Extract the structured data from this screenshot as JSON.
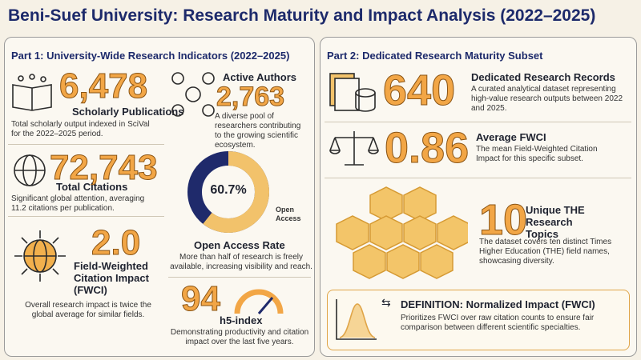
{
  "header": {
    "title": "Beni-Suef University: Research Maturity and Impact Analysis (2022–2025)"
  },
  "part1": {
    "heading": "Part 1: University-Wide Research Indicators (2022–2025)",
    "publications": {
      "number": "6,478",
      "label": "Scholarly Publications",
      "desc": "Total scholarly output indexed in SciVal for the 2022–2025 period."
    },
    "authors": {
      "label": "Active Authors",
      "number": "2,763",
      "desc": "A diverse pool of researchers contributing to the growing scientific ecosystem."
    },
    "citations": {
      "number": "72,743",
      "label": "Total Citations",
      "desc": "Significant global attention, averaging 11.2 citations per publication."
    },
    "fwci": {
      "number": "2.0",
      "label": "Field-Weighted Citation Impact (FWCI)",
      "desc": "Overall research impact is twice the global average for similar fields."
    },
    "open_access": {
      "value": 60.7,
      "value_label": "60.7%",
      "legend": "Open Access",
      "label": "Open Access Rate",
      "desc": "More than half of research is freely available, increasing visibility and reach."
    },
    "h5": {
      "number": "94",
      "label": "h5-index",
      "desc": "Demonstrating productivity and citation impact over the last five years."
    }
  },
  "part2": {
    "heading": "Part 2: Dedicated Research Maturity Subset",
    "records": {
      "number": "640",
      "label": "Dedicated Research Records",
      "desc": "A curated analytical dataset representing high-value research outputs between 2022 and 2025."
    },
    "avg_fwci": {
      "number": "0.86",
      "label": "Average FWCI",
      "desc": "The mean Field-Weighted Citation Impact for this specific subset."
    },
    "topics": {
      "number": "10",
      "label": "Unique THE Research Topics",
      "desc": "The dataset covers ten distinct Times Higher Education (THE) field names, showcasing diversity."
    },
    "definition": {
      "label": "DEFINITION: Normalized Impact (FWCI)",
      "desc": "Prioritizes FWCI over raw citation counts to ensure fair comparison between different scientific specialties."
    }
  }
}
